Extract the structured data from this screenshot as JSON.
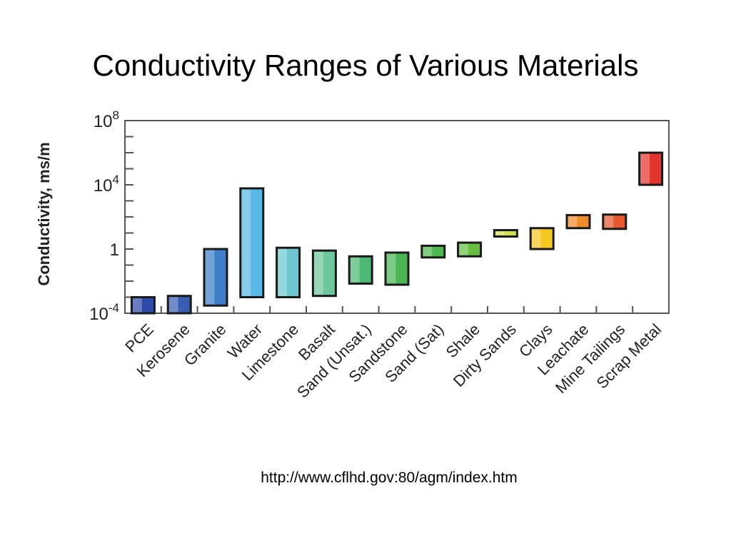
{
  "slide": {
    "title": "Conductivity Ranges of Various Materials",
    "source": "http://www.cflhd.gov:80/agm/index.htm"
  },
  "chart_data": {
    "type": "bar",
    "subtype": "floating-range",
    "ylabel": "Conductivity, ms/m",
    "y_scale": "log",
    "ylim": [
      0.0001,
      100000000
    ],
    "y_ticks": [
      {
        "value": 0.0001,
        "base": "10",
        "exp": "-4"
      },
      {
        "value": 1,
        "base": "1",
        "exp": ""
      },
      {
        "value": 10000,
        "base": "10",
        "exp": "4"
      },
      {
        "value": 100000000,
        "base": "10",
        "exp": "8"
      }
    ],
    "grid": false,
    "categories": [
      "PCE",
      "Kerosene",
      "Granite",
      "Water",
      "Limestone",
      "Basalt",
      "Sand (Unsat.)",
      "Sandstone",
      "Sand (Sat)",
      "Shale",
      "Dirty Sands",
      "Clays",
      "Leachate",
      "Mine Tailings",
      "Scrap Metal"
    ],
    "series": [
      {
        "ranges": [
          [
            0.0001,
            0.001
          ],
          [
            0.0001,
            0.0012
          ],
          [
            0.0003,
            1
          ],
          [
            0.001,
            6000
          ],
          [
            0.001,
            1.2
          ],
          [
            0.0012,
            0.8
          ],
          [
            0.007,
            0.35
          ],
          [
            0.006,
            0.6
          ],
          [
            0.3,
            1.6
          ],
          [
            0.35,
            2.5
          ],
          [
            6,
            15
          ],
          [
            1,
            20
          ],
          [
            20,
            130
          ],
          [
            18,
            140
          ],
          [
            10000,
            1000000
          ]
        ]
      }
    ],
    "colors": [
      "#2e4aa8",
      "#3a5db4",
      "#3d7fc8",
      "#58b8e6",
      "#6bc6cf",
      "#6dc69c",
      "#4db874",
      "#4bb556",
      "#4db84e",
      "#66bf42",
      "#d2df52",
      "#f5c81e",
      "#f08b2c",
      "#e45a2d",
      "#e3352d"
    ]
  }
}
